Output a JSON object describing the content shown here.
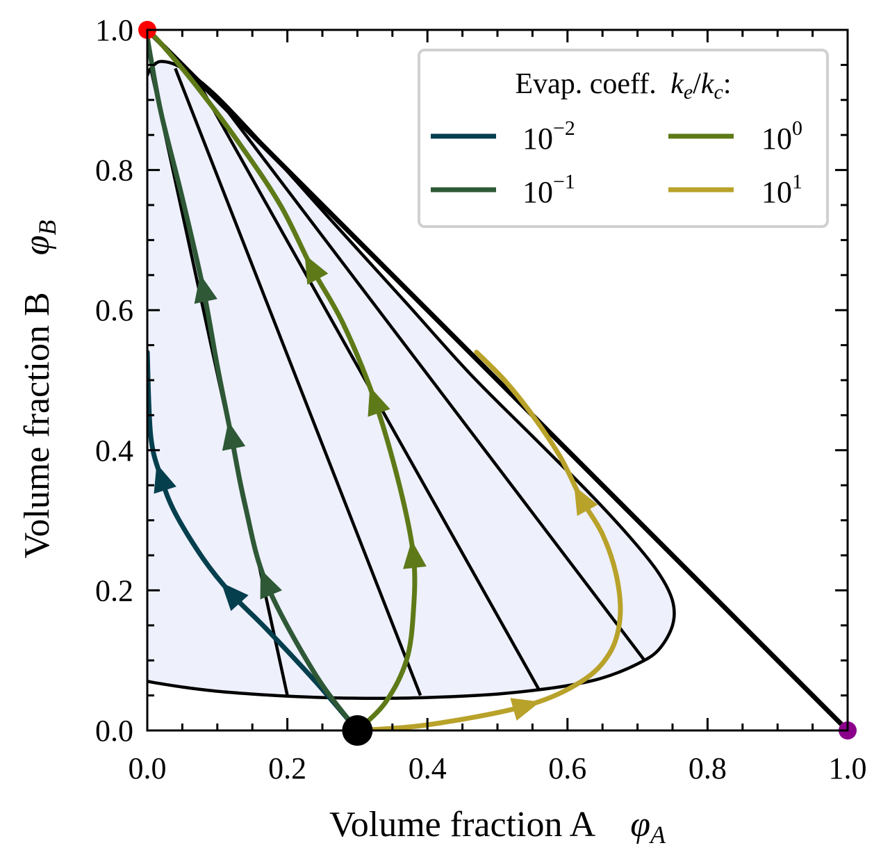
{
  "chart_data": {
    "type": "line",
    "title": "",
    "xlabel": "Volume fraction A",
    "xlabel_symbol": "φ",
    "xlabel_symbol_sub": "A",
    "ylabel": "Volume fraction B",
    "ylabel_symbol": "φ",
    "ylabel_symbol_sub": "B",
    "xlim": [
      0,
      1
    ],
    "ylim": [
      0,
      1
    ],
    "xticks": [
      "0.0",
      "0.2",
      "0.4",
      "0.6",
      "0.8",
      "1.0"
    ],
    "yticks": [
      "0.0",
      "0.2",
      "0.4",
      "0.6",
      "0.8",
      "1.0"
    ],
    "grid": false,
    "legend": {
      "title_prefix": "Evap. coeff.",
      "title_k": "k",
      "title_e": "e",
      "title_slash": "/",
      "title_c": "c",
      "title_colon": ":",
      "position": "top-right",
      "columns": 2,
      "entries": [
        {
          "base": "10",
          "exp": "−2",
          "color": "#053f4e"
        },
        {
          "base": "10",
          "exp": "−1",
          "color": "#2e5836"
        },
        {
          "base": "10",
          "exp": "0",
          "color": "#5e7a18"
        },
        {
          "base": "10",
          "exp": "1",
          "color": "#b8a22a"
        }
      ]
    },
    "simplex_boundary": [
      [
        0,
        1
      ],
      [
        1,
        0
      ]
    ],
    "binodal": {
      "color": "#000000",
      "fill": "#eef0fc",
      "points": [
        [
          0.0,
          0.07
        ],
        [
          0.05,
          0.062
        ],
        [
          0.1,
          0.056
        ],
        [
          0.15,
          0.052
        ],
        [
          0.2,
          0.049
        ],
        [
          0.25,
          0.047
        ],
        [
          0.3,
          0.046
        ],
        [
          0.35,
          0.046
        ],
        [
          0.4,
          0.047
        ],
        [
          0.45,
          0.049
        ],
        [
          0.5,
          0.052
        ],
        [
          0.55,
          0.057
        ],
        [
          0.6,
          0.064
        ],
        [
          0.65,
          0.075
        ],
        [
          0.7,
          0.095
        ],
        [
          0.73,
          0.115
        ],
        [
          0.75,
          0.15
        ],
        [
          0.75,
          0.185
        ],
        [
          0.73,
          0.225
        ],
        [
          0.69,
          0.275
        ],
        [
          0.63,
          0.34
        ],
        [
          0.55,
          0.42
        ],
        [
          0.46,
          0.51
        ],
        [
          0.37,
          0.61
        ],
        [
          0.27,
          0.72
        ],
        [
          0.18,
          0.82
        ],
        [
          0.1,
          0.905
        ],
        [
          0.05,
          0.945
        ],
        [
          0.02,
          0.955
        ],
        [
          0.005,
          0.945
        ],
        [
          0.0,
          0.935
        ]
      ]
    },
    "tie_lines": [
      [
        [
          0.2,
          0.05
        ],
        [
          0.005,
          0.945
        ]
      ],
      [
        [
          0.39,
          0.05
        ],
        [
          0.04,
          0.945
        ]
      ],
      [
        [
          0.56,
          0.057
        ],
        [
          0.07,
          0.93
        ]
      ],
      [
        [
          0.71,
          0.1
        ],
        [
          0.11,
          0.89
        ]
      ]
    ],
    "series": [
      {
        "name": "10^-2",
        "color": "#053f4e",
        "points": [
          [
            0.3,
            0.0
          ],
          [
            0.24,
            0.07
          ],
          [
            0.17,
            0.145
          ],
          [
            0.12,
            0.195
          ],
          [
            0.08,
            0.245
          ],
          [
            0.04,
            0.31
          ],
          [
            0.02,
            0.36
          ],
          [
            0.005,
            0.42
          ],
          [
            0.0,
            0.54
          ]
        ],
        "arrows": [
          [
            0.12,
            0.195
          ],
          [
            0.02,
            0.36
          ]
        ]
      },
      {
        "name": "10^-1",
        "color": "#2e5836",
        "points": [
          [
            0.3,
            0.0
          ],
          [
            0.24,
            0.08
          ],
          [
            0.17,
            0.21
          ],
          [
            0.14,
            0.32
          ],
          [
            0.12,
            0.42
          ],
          [
            0.1,
            0.52
          ],
          [
            0.08,
            0.63
          ],
          [
            0.05,
            0.76
          ],
          [
            0.02,
            0.88
          ],
          [
            0.005,
            0.96
          ],
          [
            0.0,
            0.99
          ]
        ],
        "arrows": [
          [
            0.17,
            0.21
          ],
          [
            0.12,
            0.42
          ],
          [
            0.08,
            0.63
          ]
        ]
      },
      {
        "name": "10^0",
        "color": "#5e7a18",
        "points": [
          [
            0.3,
            0.0
          ],
          [
            0.34,
            0.04
          ],
          [
            0.37,
            0.1
          ],
          [
            0.38,
            0.17
          ],
          [
            0.38,
            0.25
          ],
          [
            0.36,
            0.35
          ],
          [
            0.325,
            0.47
          ],
          [
            0.28,
            0.58
          ],
          [
            0.235,
            0.66
          ],
          [
            0.19,
            0.75
          ],
          [
            0.13,
            0.84
          ],
          [
            0.07,
            0.92
          ],
          [
            0.02,
            0.98
          ],
          [
            0.0,
            1.0
          ]
        ],
        "arrows": [
          [
            0.38,
            0.25
          ],
          [
            0.325,
            0.47
          ],
          [
            0.235,
            0.66
          ]
        ]
      },
      {
        "name": "10^1",
        "color": "#b8a22a",
        "points": [
          [
            0.3,
            0.0
          ],
          [
            0.4,
            0.008
          ],
          [
            0.54,
            0.035
          ],
          [
            0.62,
            0.07
          ],
          [
            0.66,
            0.11
          ],
          [
            0.675,
            0.16
          ],
          [
            0.67,
            0.22
          ],
          [
            0.65,
            0.28
          ],
          [
            0.62,
            0.33
          ],
          [
            0.59,
            0.39
          ],
          [
            0.55,
            0.45
          ],
          [
            0.51,
            0.5
          ],
          [
            0.47,
            0.54
          ]
        ],
        "arrows": [
          [
            0.54,
            0.035
          ],
          [
            0.62,
            0.33
          ]
        ]
      }
    ],
    "markers": [
      {
        "name": "initial-state",
        "x": 0.3,
        "y": 0.0,
        "color": "#000000"
      },
      {
        "name": "pure-b-vertex",
        "x": 0.0,
        "y": 1.0,
        "color": "#ff0000"
      },
      {
        "name": "pure-a-vertex",
        "x": 1.0,
        "y": 0.0,
        "color": "#8b008b"
      }
    ]
  }
}
